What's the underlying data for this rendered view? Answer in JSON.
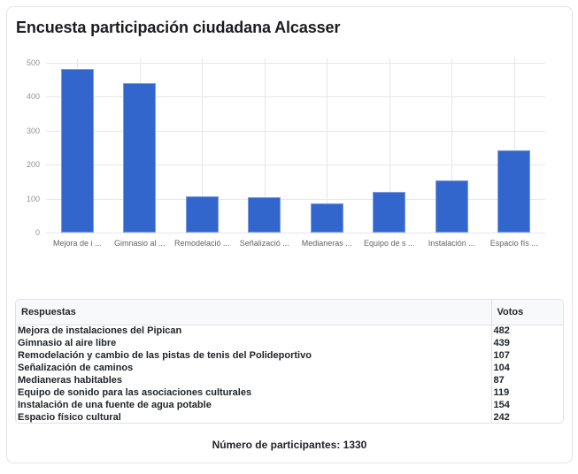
{
  "title": "Encuesta participación ciudadana Alcasser",
  "chart_data": {
    "type": "bar",
    "categories": [
      "Mejora de instalaciones del Pipican",
      "Gimnasio al aire libre",
      "Remodelación y cambio de las pistas de tenis del Polideportivo",
      "Señalización de caminos",
      "Medianeras habitables",
      "Equipo de sonido para las asociaciones culturales",
      "Instalación de una fuente de agua potable",
      "Espacio físico cultural"
    ],
    "tick_labels": [
      "Mejora de i ...",
      "Gimnasio al ...",
      "Remodelació ...",
      "Señalizació ...",
      "Medianeras ...",
      "Equipo de s ...",
      "Instalación ...",
      "Espacio fís ..."
    ],
    "values": [
      482,
      439,
      107,
      104,
      87,
      119,
      154,
      242
    ],
    "title": "Encuesta participación ciudadana Alcasser",
    "xlabel": "",
    "ylabel": "",
    "ylim": [
      0,
      500
    ],
    "yticks": [
      0,
      100,
      200,
      300,
      400,
      500
    ],
    "grid": true,
    "legend": false,
    "bar_color": "#3366cc",
    "grid_color": "#e7e7e7"
  },
  "table": {
    "headers": [
      "Respuestas",
      "Votos"
    ],
    "rows": [
      {
        "respuesta": "Mejora de instalaciones del Pipican",
        "votos": "482"
      },
      {
        "respuesta": "Gimnasio al aire libre",
        "votos": "439"
      },
      {
        "respuesta": "Remodelación y cambio de las pistas de tenis del Polideportivo",
        "votos": "107"
      },
      {
        "respuesta": "Señalización de caminos",
        "votos": "104"
      },
      {
        "respuesta": "Medianeras habitables",
        "votos": "87"
      },
      {
        "respuesta": "Equipo de sonido para las asociaciones culturales",
        "votos": "119"
      },
      {
        "respuesta": "Instalación de una fuente de agua potable",
        "votos": "154"
      },
      {
        "respuesta": "Espacio físico cultural",
        "votos": "242"
      }
    ]
  },
  "footer": {
    "text": "Número de participantes: 1330"
  }
}
